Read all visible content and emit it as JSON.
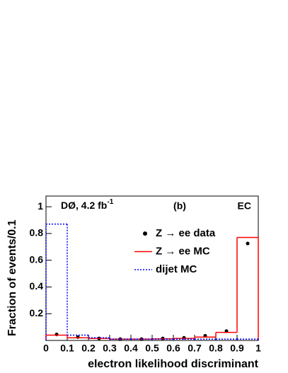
{
  "chart_data": {
    "type": "histogram",
    "xlabel": "electron likelihood discriminant",
    "ylabel": "Fraction of events/0.1",
    "experiment_label": {
      "text": "DØ, 4.2 fb",
      "superscript": "-1"
    },
    "panel_label": "(b)",
    "region_label": "EC",
    "bins": [
      0,
      0.1,
      0.2,
      0.3,
      0.4,
      0.5,
      0.6,
      0.7,
      0.8,
      0.9,
      1
    ],
    "xlim": [
      0,
      1
    ],
    "xticks": [
      0,
      0.1,
      0.2,
      0.3,
      0.4,
      0.5,
      0.6,
      0.7,
      0.8,
      0.9,
      1
    ],
    "ylim": [
      0,
      1.08
    ],
    "yticks": [
      0.2,
      0.4,
      0.6,
      0.8,
      1
    ],
    "series": [
      {
        "name": "Z → ee data",
        "color": "#000000",
        "style": "points",
        "values": [
          0.045,
          0.025,
          0.015,
          0.01,
          0.01,
          0.015,
          0.02,
          0.035,
          0.07,
          0.725
        ]
      },
      {
        "name": "Z → ee MC",
        "color": "#ff0000",
        "style": "solid",
        "values": [
          0.04,
          0.02,
          0.015,
          0.01,
          0.01,
          0.012,
          0.015,
          0.025,
          0.06,
          0.77
        ]
      },
      {
        "name": "dijet MC",
        "color": "#0000ff",
        "style": "dotted",
        "values": [
          0.87,
          0.04,
          0.02,
          0.01,
          0.01,
          0.01,
          0.01,
          0.01,
          0.01,
          0.01
        ]
      }
    ]
  }
}
